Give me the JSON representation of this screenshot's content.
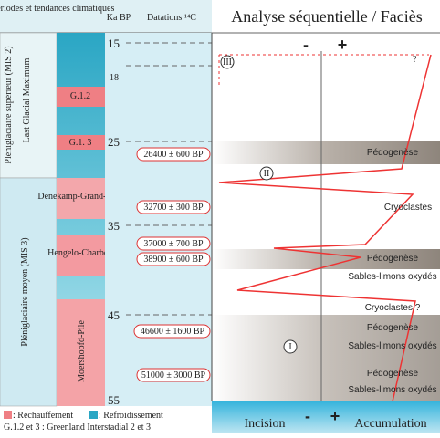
{
  "header": {
    "periods": "Périodes et tendances climatiques",
    "ka": "Ka BP",
    "dates": "Datations ¹⁴C",
    "analysis": "Analyse séquentielle / Faciès"
  },
  "periods": [
    "Pléniglaciaire supérieur (MIS 2)",
    "Last Glacial Maximum",
    "Pléniglaciaire moyen (MIS 3)"
  ],
  "stages": [
    "G.1.2",
    "G.1. 3",
    "Denekamp-Grand-Bois",
    "Hengelo-Charbon",
    "Moershoofd-Pile"
  ],
  "ka_ticks": [
    "15",
    "18",
    "25",
    "35",
    "45",
    "55"
  ],
  "dates": [
    "26400 ± 600 BP",
    "32700 ± 300 BP",
    "37000 ± 700 BP",
    "38900 ± 600 BP",
    "46600 ± 1600 BP",
    "51000 ± 3000 BP"
  ],
  "sequences": [
    "III",
    "II",
    "I"
  ],
  "facies": [
    "Pédogenèse",
    "Cryoclastes",
    "Pédogenèse",
    "Sables-limons oxydés",
    "Cryoclastes ?",
    "Pédogenèse",
    "Sables-limons oxydés",
    "Pédogenèse",
    "Sables-limons oxydés"
  ],
  "axis": {
    "minus": "-",
    "plus": "+",
    "question": "?",
    "incision": "Incision",
    "accumulation": "Accumulation"
  },
  "legend": {
    "warming": ": Réchauffement",
    "cooling": ": Refroidissement",
    "note": "G.1.2 et 3 : Greenland Interstadial 2 et 3"
  }
}
